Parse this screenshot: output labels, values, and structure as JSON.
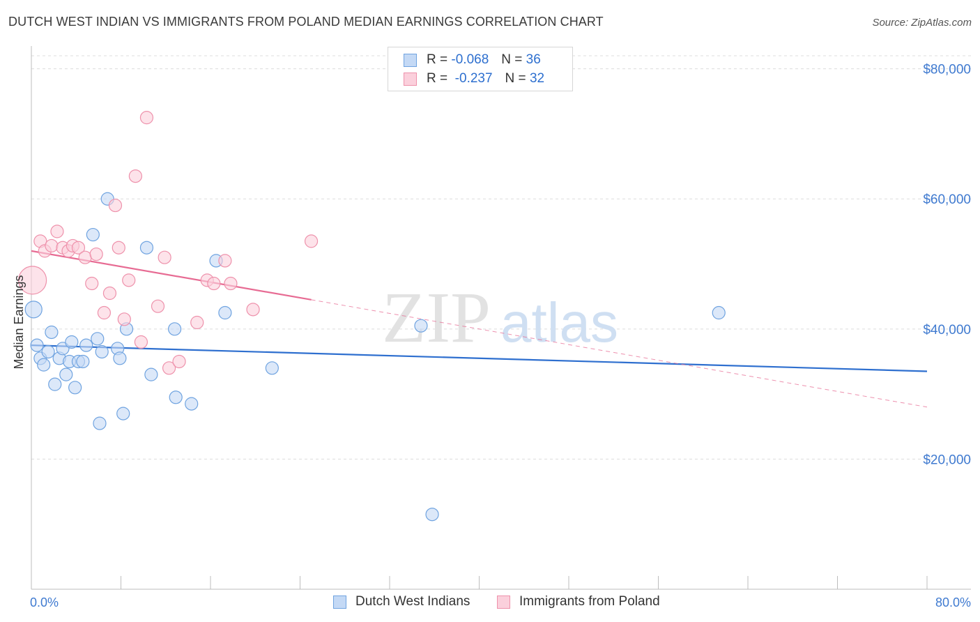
{
  "title": "DUTCH WEST INDIAN VS IMMIGRANTS FROM POLAND MEDIAN EARNINGS CORRELATION CHART",
  "source": "Source: ZipAtlas.com",
  "watermark": {
    "zip": "ZIP",
    "atlas": "atlas"
  },
  "legend": {
    "rows": [
      {
        "r_label": "R =",
        "r_value": "-0.068",
        "n_label": "N =",
        "n_value": "36",
        "color": "#6fa3e0"
      },
      {
        "r_label": "R =",
        "r_value": "-0.237",
        "n_label": "N =",
        "n_value": "32",
        "color": "#ee91ab"
      }
    ]
  },
  "bottom_legend": [
    {
      "label": "Dutch West Indians",
      "color": "#6fa3e0"
    },
    {
      "label": "Immigrants from Poland",
      "color": "#ee91ab"
    }
  ],
  "chart_data": {
    "type": "scatter",
    "title": "DUTCH WEST INDIAN VS IMMIGRANTS FROM POLAND MEDIAN EARNINGS CORRELATION CHART",
    "xlabel": "",
    "ylabel": "Median Earnings",
    "xlim": [
      0,
      80
    ],
    "ylim": [
      0,
      82000
    ],
    "x_tick_labels": [
      "0.0%",
      "80.0%"
    ],
    "y_ticks": [
      20000,
      40000,
      60000,
      80000
    ],
    "y_tick_labels": [
      "$20,000",
      "$40,000",
      "$60,000",
      "$80,000"
    ],
    "grid": true,
    "legend_position": "top-center",
    "series": [
      {
        "name": "Dutch West Indians",
        "color": "#6fa3e0",
        "points": [
          [
            0.2,
            43000
          ],
          [
            0.5,
            37500
          ],
          [
            0.8,
            35500
          ],
          [
            1.1,
            34500
          ],
          [
            1.5,
            36500
          ],
          [
            1.8,
            39500
          ],
          [
            2.1,
            31500
          ],
          [
            2.5,
            35500
          ],
          [
            2.8,
            37000
          ],
          [
            3.1,
            33000
          ],
          [
            3.4,
            35000
          ],
          [
            3.6,
            38000
          ],
          [
            3.9,
            31000
          ],
          [
            4.2,
            35000
          ],
          [
            4.6,
            35000
          ],
          [
            4.9,
            37500
          ],
          [
            5.5,
            54500
          ],
          [
            5.9,
            38500
          ],
          [
            6.1,
            25500
          ],
          [
            6.3,
            36500
          ],
          [
            6.8,
            60000
          ],
          [
            7.7,
            37000
          ],
          [
            7.9,
            35500
          ],
          [
            8.2,
            27000
          ],
          [
            8.5,
            40000
          ],
          [
            10.3,
            52500
          ],
          [
            10.7,
            33000
          ],
          [
            12.8,
            40000
          ],
          [
            12.9,
            29500
          ],
          [
            14.3,
            28500
          ],
          [
            16.5,
            50500
          ],
          [
            17.3,
            42500
          ],
          [
            21.5,
            34000
          ],
          [
            34.8,
            40500
          ],
          [
            35.8,
            11500
          ],
          [
            61.4,
            42500
          ]
        ],
        "trend": {
          "x": [
            0,
            80
          ],
          "y": [
            37500,
            33500
          ]
        }
      },
      {
        "name": "Immigrants from Poland",
        "color": "#ee91ab",
        "points": [
          [
            0.1,
            47500
          ],
          [
            0.8,
            53500
          ],
          [
            1.2,
            52000
          ],
          [
            1.8,
            52800
          ],
          [
            2.3,
            55000
          ],
          [
            2.8,
            52500
          ],
          [
            3.3,
            52000
          ],
          [
            3.7,
            52800
          ],
          [
            4.2,
            52500
          ],
          [
            4.8,
            51000
          ],
          [
            5.4,
            47000
          ],
          [
            5.8,
            51500
          ],
          [
            6.5,
            42500
          ],
          [
            7.0,
            45500
          ],
          [
            7.5,
            59000
          ],
          [
            7.8,
            52500
          ],
          [
            8.3,
            41500
          ],
          [
            8.7,
            47500
          ],
          [
            9.3,
            63500
          ],
          [
            9.8,
            38000
          ],
          [
            10.3,
            72500
          ],
          [
            11.3,
            43500
          ],
          [
            11.9,
            51000
          ],
          [
            12.3,
            34000
          ],
          [
            13.2,
            35000
          ],
          [
            14.8,
            41000
          ],
          [
            15.7,
            47500
          ],
          [
            16.3,
            47000
          ],
          [
            17.3,
            50500
          ],
          [
            17.8,
            47000
          ],
          [
            19.8,
            43000
          ],
          [
            25.0,
            53500
          ]
        ],
        "trend": {
          "x": [
            0,
            25
          ],
          "y": [
            52000,
            44500
          ]
        },
        "trend_dashed": {
          "x": [
            25,
            80
          ],
          "y": [
            44500,
            28000
          ]
        }
      }
    ]
  }
}
